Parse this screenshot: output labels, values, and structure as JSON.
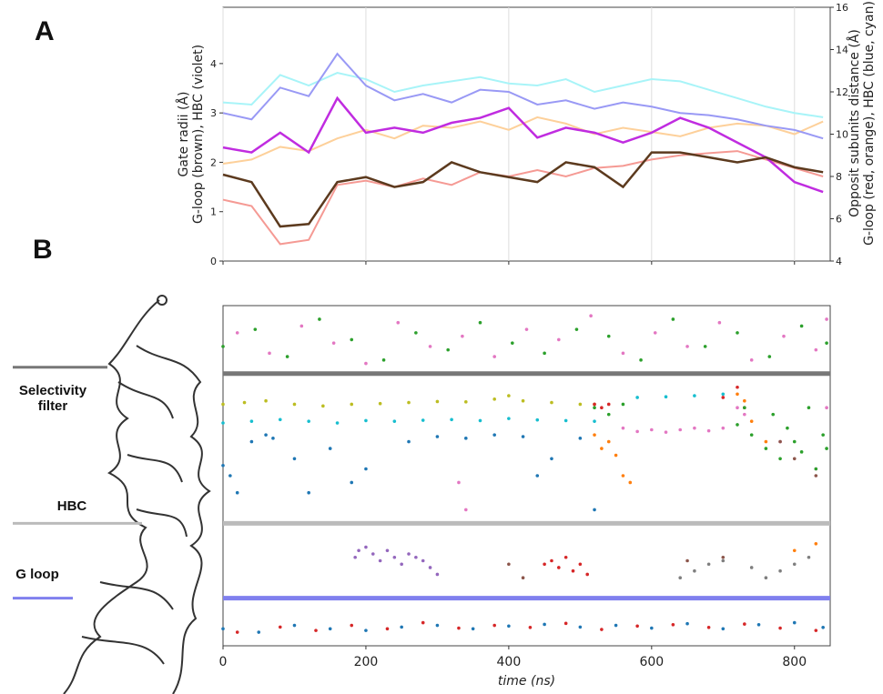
{
  "chart_data": [
    {
      "type": "line",
      "panel": "A",
      "ylabel": [
        "Gate radii (Å)",
        "G-loop (brown), HBC (violet)"
      ],
      "y2label": [
        "Opposit subunits distance (Å)",
        "G-loop (red, orange), HBC (blue, cyan)"
      ],
      "x": [
        0,
        40,
        80,
        120,
        160,
        200,
        240,
        280,
        320,
        360,
        400,
        440,
        480,
        520,
        560,
        600,
        640,
        680,
        720,
        760,
        800,
        840
      ],
      "xlim": [
        0,
        850
      ],
      "xticks": [
        0,
        200,
        400,
        600,
        800
      ],
      "grid": true,
      "ylim": [
        0,
        5.14
      ],
      "yticks": [
        0,
        1,
        2,
        3,
        4
      ],
      "y2lim": [
        4,
        16
      ],
      "y2ticks": [
        4,
        6,
        8,
        10,
        12,
        14,
        16
      ],
      "series": [
        {
          "color": "#fdd09a",
          "axis": "y2",
          "values": [
            8.6,
            8.8,
            9.4,
            9.2,
            9.8,
            10.2,
            9.8,
            10.4,
            10.3,
            10.6,
            10.2,
            10.8,
            10.5,
            10,
            10.3,
            10.1,
            9.9,
            10.3,
            10.5,
            10.4,
            10.0,
            10.6
          ]
        },
        {
          "color": "#a8f4f8",
          "axis": "y2",
          "values": [
            11.5,
            11.4,
            12.8,
            12.3,
            12.9,
            12.6,
            12.0,
            12.3,
            12.5,
            12.7,
            12.4,
            12.3,
            12.6,
            12.0,
            12.3,
            12.6,
            12.5,
            12.1,
            11.7,
            11.3,
            11.0,
            10.8
          ]
        },
        {
          "color": "#9999f5",
          "axis": "y2",
          "values": [
            11.0,
            10.7,
            12.2,
            11.8,
            13.8,
            12.3,
            11.6,
            11.9,
            11.5,
            12.1,
            12.0,
            11.4,
            11.6,
            11.2,
            11.5,
            11.3,
            11.0,
            10.9,
            10.7,
            10.4,
            10.2,
            9.8
          ]
        },
        {
          "color": "#f59a94",
          "axis": "y2",
          "values": [
            6.9,
            6.6,
            4.8,
            5.0,
            7.6,
            7.8,
            7.5,
            7.9,
            7.6,
            8.2,
            8.0,
            8.3,
            8.0,
            8.4,
            8.5,
            8.8,
            9.0,
            9.1,
            9.2,
            8.8,
            8.4,
            8.0
          ]
        },
        {
          "color": "#c02ce0",
          "values": [
            2.3,
            2.2,
            2.6,
            2.2,
            3.3,
            2.6,
            2.7,
            2.6,
            2.8,
            2.9,
            3.1,
            2.5,
            2.7,
            2.6,
            2.4,
            2.6,
            2.9,
            2.7,
            2.4,
            2.1,
            1.6,
            1.4
          ]
        },
        {
          "color": "#5c3a1e",
          "values": [
            1.75,
            1.6,
            0.7,
            0.75,
            1.6,
            1.7,
            1.5,
            1.6,
            2.0,
            1.8,
            1.7,
            1.6,
            2.0,
            1.9,
            1.5,
            2.2,
            2.2,
            2.1,
            2.0,
            2.1,
            1.9,
            1.8
          ]
        }
      ]
    },
    {
      "type": "scatter",
      "panel": "B",
      "xlabel": "time (ns)",
      "xlim": [
        0,
        850
      ],
      "xticks": [
        0,
        200,
        400,
        600,
        800
      ],
      "ylim": [
        0,
        100
      ],
      "regions": [
        {
          "label": "Selectivity filter",
          "y": 80,
          "color": "#777777"
        },
        {
          "label": "HBC",
          "y": 36,
          "color": "#bbbbbb"
        },
        {
          "label": "G loop",
          "y": 14,
          "color": "#8080ee"
        }
      ],
      "series": [
        {
          "color": "#2ca02c",
          "x": [
            0,
            45,
            90,
            135,
            180,
            225,
            270,
            315,
            360,
            405,
            450,
            495,
            540,
            585,
            630,
            675,
            720,
            765,
            810,
            845
          ],
          "y": [
            88,
            93,
            85,
            96,
            90,
            84,
            92,
            87,
            95,
            89,
            86,
            93,
            91,
            84,
            96,
            88,
            92,
            85,
            94,
            89
          ]
        },
        {
          "color": "#e377c2",
          "x": [
            20,
            65,
            110,
            155,
            200,
            245,
            290,
            335,
            380,
            425,
            470,
            515,
            560,
            605,
            650,
            695,
            740,
            785,
            830,
            845
          ],
          "y": [
            92,
            86,
            94,
            89,
            83,
            95,
            88,
            91,
            85,
            93,
            90,
            97,
            86,
            92,
            88,
            95,
            84,
            91,
            87,
            96
          ]
        },
        {
          "color": "#bcbd22",
          "x": [
            0,
            30,
            60,
            100,
            140,
            180,
            220,
            260,
            300,
            340,
            380,
            400,
            420,
            460,
            500,
            520
          ],
          "y": [
            71,
            71.5,
            72,
            71,
            70.5,
            71,
            71.2,
            71.5,
            71.8,
            71.7,
            72.5,
            73.5,
            72,
            71.5,
            71,
            71
          ]
        },
        {
          "color": "#17becf",
          "x": [
            0,
            40,
            80,
            120,
            160,
            200,
            240,
            280,
            320,
            360,
            400,
            440,
            480,
            520,
            580,
            620,
            660,
            700
          ],
          "y": [
            65.5,
            66,
            66.5,
            66,
            65.5,
            66.2,
            66,
            66.3,
            66.5,
            66.2,
            66.8,
            66.4,
            66.2,
            66,
            73,
            73.2,
            73.5,
            74
          ]
        },
        {
          "color": "#1f77b4",
          "x": [
            0,
            10,
            20,
            40,
            60,
            70,
            100,
            120,
            150,
            180,
            200,
            260,
            300,
            340,
            380,
            420,
            440,
            460,
            500,
            520
          ],
          "y": [
            53,
            50,
            45,
            60,
            62,
            61,
            55,
            45,
            58,
            48,
            52,
            60,
            61.5,
            61,
            62,
            61.5,
            50,
            55,
            61,
            40
          ]
        },
        {
          "color": "#e377c2",
          "x": [
            330,
            340,
            560,
            580,
            600,
            620,
            640,
            660,
            680,
            700,
            720,
            730,
            780,
            830,
            845
          ],
          "y": [
            48,
            40,
            64,
            63,
            63.5,
            62.8,
            63.5,
            64,
            63.2,
            64,
            70,
            68,
            60,
            52,
            70
          ]
        },
        {
          "color": "#9467bd",
          "x": [
            185,
            190,
            200,
            210,
            220,
            230,
            240,
            250,
            260,
            270,
            280,
            290,
            300
          ],
          "y": [
            26,
            28,
            29,
            27,
            25,
            28,
            26,
            24,
            27,
            26,
            25,
            23,
            21
          ]
        },
        {
          "color": "#d62728",
          "x": [
            450,
            460,
            470,
            480,
            490,
            500,
            510,
            520,
            530,
            540,
            700,
            720,
            730
          ],
          "y": [
            24,
            25,
            23,
            26,
            22,
            24,
            21,
            71,
            70,
            71,
            73,
            76,
            70
          ]
        },
        {
          "color": "#2ca02c",
          "x": [
            520,
            540,
            560,
            720,
            730,
            740,
            760,
            770,
            780,
            790,
            800,
            810,
            820,
            830,
            840,
            845
          ],
          "y": [
            70,
            68,
            71,
            65,
            70,
            62,
            58,
            68,
            55,
            64,
            60,
            57,
            70,
            52,
            62,
            58
          ]
        },
        {
          "color": "#ff7f0e",
          "x": [
            520,
            530,
            540,
            550,
            560,
            570,
            720,
            730,
            740,
            760,
            800,
            830
          ],
          "y": [
            62,
            58,
            60,
            56,
            50,
            48,
            74,
            72,
            66,
            60,
            28,
            30
          ]
        },
        {
          "color": "#7f7f7f",
          "x": [
            640,
            660,
            680,
            700,
            740,
            760,
            780,
            800,
            820
          ],
          "y": [
            20,
            22,
            24,
            25,
            23,
            20,
            22,
            24,
            26
          ]
        },
        {
          "color": "#8c564b",
          "x": [
            400,
            420,
            650,
            700,
            780,
            800,
            830
          ],
          "y": [
            24,
            20,
            25,
            26,
            60,
            55,
            50
          ]
        },
        {
          "color": "#1f77b4",
          "x": [
            0,
            50,
            100,
            150,
            200,
            250,
            300,
            350,
            400,
            450,
            500,
            550,
            600,
            650,
            700,
            750,
            800,
            840
          ],
          "y": [
            5,
            4,
            6,
            5,
            4.5,
            5.5,
            6,
            5,
            5.8,
            6.3,
            5.5,
            6,
            5.2,
            6.5,
            5,
            6.2,
            6.8,
            5.4
          ]
        },
        {
          "color": "#d62728",
          "x": [
            20,
            80,
            130,
            180,
            230,
            280,
            330,
            380,
            430,
            480,
            530,
            580,
            630,
            680,
            730,
            780,
            830
          ],
          "y": [
            4,
            5.5,
            4.5,
            6,
            5,
            6.8,
            5.2,
            6,
            5.4,
            6.6,
            4.8,
            5.8,
            6.2,
            5.4,
            6.4,
            5.2,
            4.5
          ]
        }
      ]
    }
  ]
}
